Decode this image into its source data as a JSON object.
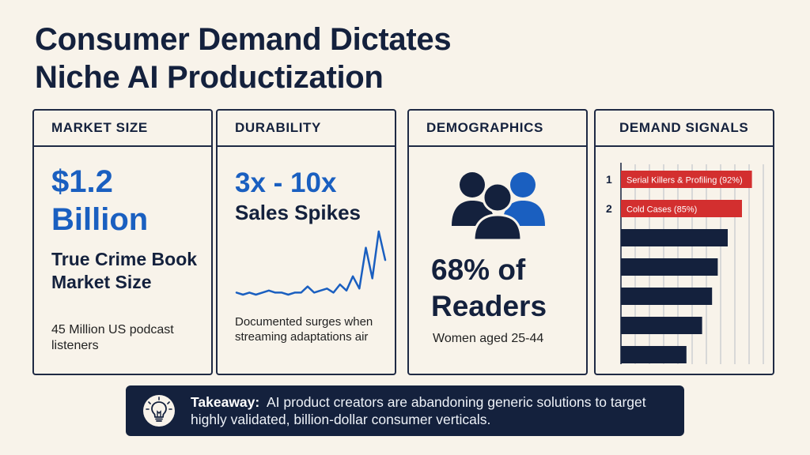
{
  "title": {
    "line1": "Consumer Demand Dictates",
    "line2": "Niche AI Productization"
  },
  "cards": {
    "market_size": {
      "header": "MARKET SIZE",
      "value_line1": "$1.2",
      "value_line2": "Billion",
      "label": "True Crime Book Market Size",
      "note": "45 Million US podcast listeners"
    },
    "durability": {
      "header": "DURABILITY",
      "value": "3x - 10x",
      "label": "Sales Spikes",
      "note": "Documented surges when streaming adaptations air",
      "sparkline": [
        2,
        1,
        2,
        1,
        2,
        3,
        2,
        2,
        1,
        2,
        2,
        5,
        2,
        3,
        4,
        2,
        6,
        3,
        10,
        4,
        24,
        9,
        32,
        18
      ]
    },
    "demographics": {
      "header": "DEMOGRAPHICS",
      "value_line1": "68% of",
      "value_line2": "Readers",
      "note": "Women aged 25-44"
    },
    "demand_signals": {
      "header": "DEMAND SIGNALS",
      "bars": [
        {
          "rank": "1",
          "label": "Serial Killers & Profiling (92%)",
          "value": 92,
          "highlight": true
        },
        {
          "rank": "2",
          "label": "Cold Cases (85%)",
          "value": 85,
          "highlight": true
        },
        {
          "rank": "",
          "label": "",
          "value": 75,
          "highlight": false
        },
        {
          "rank": "",
          "label": "",
          "value": 68,
          "highlight": false
        },
        {
          "rank": "",
          "label": "",
          "value": 64,
          "highlight": false
        },
        {
          "rank": "",
          "label": "",
          "value": 57,
          "highlight": false
        },
        {
          "rank": "",
          "label": "",
          "value": 46,
          "highlight": false
        }
      ]
    }
  },
  "takeaway": {
    "label": "Takeaway:",
    "text": "AI product creators are abandoning generic solutions to target highly validated, billion-dollar consumer verticals."
  },
  "colors": {
    "navy": "#14213d",
    "blue": "#1a5fc0",
    "red": "#d32f2f",
    "background": "#f8f3ea"
  }
}
